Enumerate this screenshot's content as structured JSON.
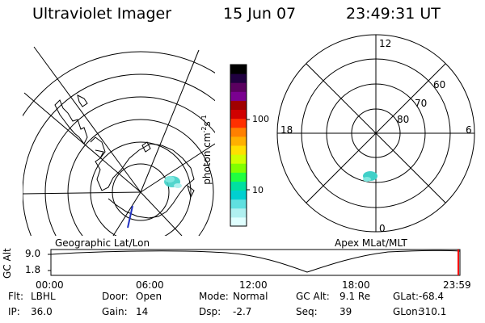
{
  "header": {
    "instrument": "Ultraviolet Imager",
    "date": "15 Jun 07",
    "time": "23:49:31 UT"
  },
  "left_map": {
    "caption": "Geographic Lat/Lon"
  },
  "colorbar": {
    "label_text": "photon cm",
    "label_exp1": "-2",
    "label_mid": "s",
    "label_exp2": "-1",
    "ticks": [
      "100",
      "10"
    ],
    "colors": [
      "#000000",
      "#200040",
      "#5a0060",
      "#7a0090",
      "#a00000",
      "#d00000",
      "#ff3000",
      "#ff8000",
      "#ffb000",
      "#ffe000",
      "#d0ff00",
      "#80ff00",
      "#20ff40",
      "#00e0a0",
      "#00d0d0",
      "#60e0e0",
      "#b0f0f0",
      "#e0ffff"
    ]
  },
  "right_map": {
    "caption": "Apex MLat/MLT",
    "mlt_labels": [
      "12",
      "18",
      "6",
      "0"
    ],
    "lat_labels": [
      "60",
      "70",
      "80"
    ]
  },
  "timeline": {
    "axis_label": "GC Alt",
    "y_labels": [
      "9.0",
      "1.8"
    ],
    "x_labels": [
      "00:00",
      "06:00",
      "12:00",
      "18:00",
      "23:59"
    ],
    "marker_color": "#ff0000"
  },
  "status": {
    "row1": [
      {
        "key": "Flt:",
        "value": "LBHL"
      },
      {
        "key": "Door:",
        "value": "Open"
      },
      {
        "key": "Mode:",
        "value": "Normal"
      },
      {
        "key": "GC Alt:",
        "value": "9.1 Re"
      },
      {
        "key": "GLat:",
        "value": "-68.4"
      }
    ],
    "row2": [
      {
        "key": "IP:",
        "value": "36.0"
      },
      {
        "key": "Gain:",
        "value": "14"
      },
      {
        "key": "Dsp:",
        "value": "-2.7"
      },
      {
        "key": "Seq:",
        "value": "39"
      },
      {
        "key": "GLon:",
        "value": "310.1"
      }
    ]
  }
}
